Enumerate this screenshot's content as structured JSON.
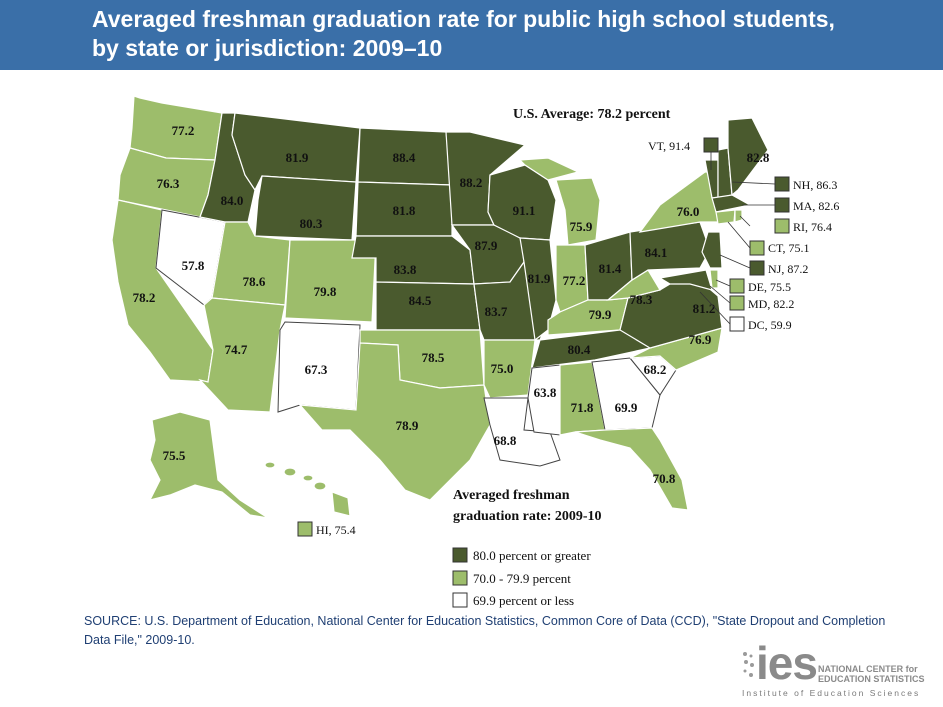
{
  "header": {
    "title_line1": "Averaged freshman graduation rate for public high school students,",
    "title_line2": "by state or jurisdiction: 2009–10"
  },
  "map": {
    "us_average": "U.S. Average: 78.2 percent",
    "legend_title_line1": "Averaged freshman",
    "legend_title_line2": "graduation rate: 2009-10",
    "legend": [
      {
        "label": "80.0 percent or greater",
        "color": "#4a5a2e"
      },
      {
        "label": "70.0 - 79.9 percent",
        "color": "#9dbd6b"
      },
      {
        "label": "69.9 percent or less",
        "color": "#ffffff"
      }
    ],
    "states": {
      "WA": "77.2",
      "OR": "76.3",
      "CA": "78.2",
      "NV": "57.8",
      "ID": "84.0",
      "MT": "81.9",
      "WY": "80.3",
      "UT": "78.6",
      "AZ": "74.7",
      "CO": "79.8",
      "NM": "67.3",
      "ND": "88.4",
      "SD": "81.8",
      "NE": "83.8",
      "KS": "84.5",
      "OK": "78.5",
      "TX": "78.9",
      "MN": "88.2",
      "IA": "87.9",
      "MO": "83.7",
      "AR": "75.0",
      "LA": "68.8",
      "WI": "91.1",
      "IL": "81.9",
      "MI": "75.9",
      "IN": "77.2",
      "OH": "81.4",
      "KY": "79.9",
      "TN": "80.4",
      "MS": "63.8",
      "AL": "71.8",
      "GA": "69.9",
      "FL": "70.8",
      "SC": "68.2",
      "NC": "76.9",
      "VA": "81.2",
      "WV": "78.3",
      "PA": "84.1",
      "NY": "76.0",
      "ME": "82.8",
      "AK": "75.5"
    },
    "callouts": {
      "VT": "VT, 91.4",
      "NH": "NH, 86.3",
      "MA": "MA, 82.6",
      "RI": "RI, 76.4",
      "CT": "CT, 75.1",
      "NJ": "NJ, 87.2",
      "DE": "DE, 75.5",
      "MD": "MD, 82.2",
      "DC": "DC, 59.9",
      "HI": "HI, 75.4"
    }
  },
  "source": "SOURCE: U.S. Department of Education, National Center for Education Statistics, Common Core of Data (CCD), \"State Dropout and Completion Data File,\" 2009-10.",
  "logo": {
    "ies": "ies",
    "line1": "NATIONAL CENTER for",
    "line2": "EDUCATION STATISTICS",
    "sub": "Institute of Education Sciences"
  }
}
